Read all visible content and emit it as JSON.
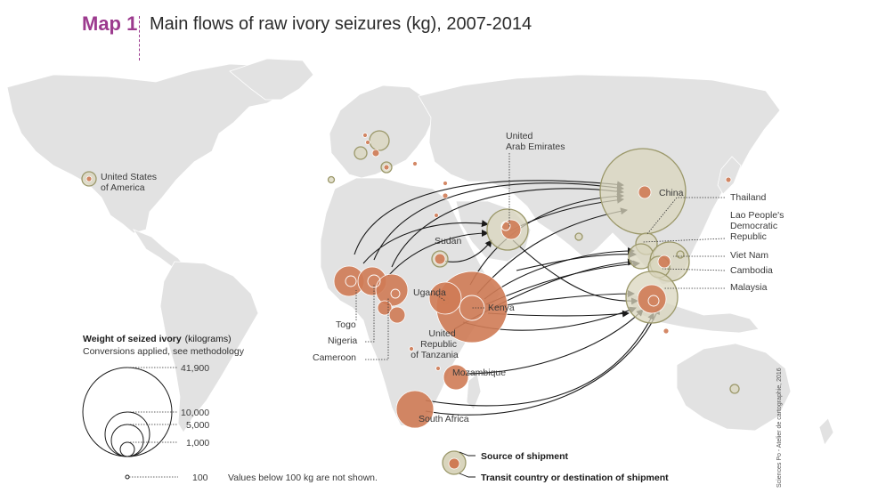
{
  "header": {
    "map_label": "Map 1",
    "title": "Main flows of raw ivory seizures (kg), 2007-2014"
  },
  "labels": {
    "usa": [
      "United States",
      "of America"
    ],
    "uae": [
      "United",
      "Arab Emirates"
    ],
    "china": "China",
    "sudan": "Sudan",
    "uganda": "Uganda",
    "kenya": "Kenya",
    "tanzania": [
      "United",
      "Republic",
      "of Tanzania"
    ],
    "mozambique": "Mozambique",
    "south_africa": "South Africa",
    "togo": "Togo",
    "nigeria": "Nigeria",
    "cameroon": "Cameroon",
    "thailand": "Thailand",
    "lao": [
      "Lao People's",
      "Democratic",
      "Republic"
    ],
    "viet_nam": "Viet Nam",
    "cambodia": "Cambodia",
    "malaysia": "Malaysia"
  },
  "size_legend": {
    "title": "Weight of seized ivory",
    "title_unit": "(kilograms)",
    "subtitle": "Conversions applied, see methodology",
    "values": [
      "41,900",
      "10,000",
      "5,000",
      "1,000",
      "100"
    ],
    "note": "Values below 100 kg are not shown."
  },
  "type_legend": {
    "source": "Source of shipment",
    "transit": "Transit country or destination of shipment"
  },
  "credit": "Sciences Po - Atelier de cartographie, 2016",
  "colors": {
    "source_fill": "#cf7b55",
    "transit_fill": "#d9d5bd",
    "transit_stroke": "#9b986a",
    "land": "#e2e2e2",
    "accent": "#9c3a8e"
  }
}
